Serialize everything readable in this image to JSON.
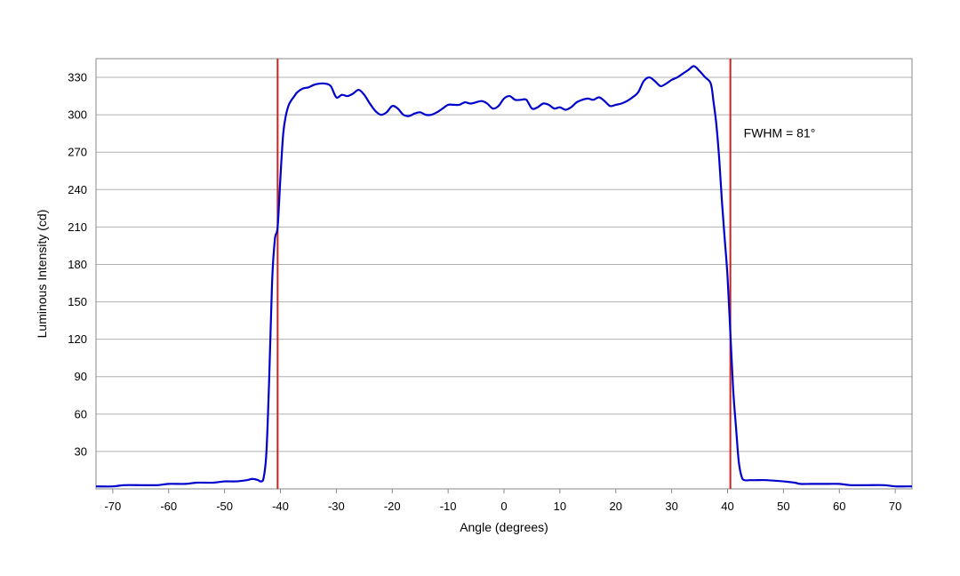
{
  "chart_data": {
    "type": "line",
    "xlabel": "Angle (degrees)",
    "ylabel": "Luminous Intensity (cd)",
    "xlim": [
      -73,
      73
    ],
    "ylim": [
      0,
      345
    ],
    "xticks": [
      -70,
      -60,
      -50,
      -40,
      -30,
      -20,
      -10,
      0,
      10,
      20,
      30,
      40,
      50,
      60,
      70
    ],
    "yticks": [
      30,
      60,
      90,
      120,
      150,
      180,
      210,
      240,
      270,
      300,
      330
    ],
    "grid": "horizontal",
    "annotation": "FWHM = 81°",
    "vlines": [
      -40.5,
      40.5
    ],
    "colors": {
      "series": "#0000cc",
      "vlines": "#cc2222",
      "grid": "#b0b0b0",
      "frame": "#888888"
    },
    "series": [
      {
        "x": [
          -73,
          -70,
          -68,
          -65,
          -62,
          -60,
          -57,
          -55,
          -52,
          -50,
          -48,
          -46,
          -45,
          -44,
          -43.5,
          -43,
          -42.5,
          -42,
          -41.5,
          -41,
          -40.5,
          -40,
          -39.5,
          -39,
          -38.5,
          -38,
          -37.5,
          -37,
          -36,
          -35,
          -34,
          -33,
          -32,
          -31,
          -30,
          -29,
          -28,
          -27,
          -26,
          -25,
          -24,
          -23,
          -22,
          -21,
          -20,
          -19,
          -18,
          -17,
          -16,
          -15,
          -14,
          -13,
          -12,
          -11,
          -10,
          -9,
          -8,
          -7,
          -6,
          -5,
          -4,
          -3,
          -2,
          -1,
          0,
          1,
          2,
          3,
          4,
          5,
          6,
          7,
          8,
          9,
          10,
          11,
          12,
          13,
          14,
          15,
          16,
          17,
          18,
          19,
          20,
          21,
          22,
          23,
          24,
          25,
          26,
          27,
          28,
          29,
          30,
          31,
          32,
          33,
          34,
          35,
          36,
          37,
          37.5,
          38,
          38.5,
          39,
          39.5,
          40,
          40.5,
          41,
          41.5,
          42,
          42.5,
          43,
          44,
          45,
          47,
          50,
          52,
          53,
          55,
          58,
          60,
          62,
          65,
          68,
          70,
          72,
          73
        ],
        "y": [
          2,
          2,
          3,
          3,
          3,
          4,
          4,
          5,
          5,
          6,
          6,
          7,
          8,
          7,
          6,
          9,
          30,
          90,
          165,
          200,
          210,
          250,
          285,
          300,
          308,
          312,
          315,
          318,
          321,
          322,
          324,
          325,
          325,
          323,
          314,
          316,
          315,
          317,
          320,
          316,
          309,
          303,
          300,
          302,
          307,
          305,
          300,
          299,
          301,
          302,
          300,
          300,
          302,
          305,
          308,
          308,
          308,
          310,
          309,
          310,
          311,
          309,
          305,
          307,
          313,
          315,
          312,
          312,
          312,
          305,
          306,
          309,
          308,
          305,
          306,
          304,
          306,
          310,
          312,
          313,
          312,
          314,
          311,
          307,
          308,
          309,
          311,
          314,
          318,
          327,
          330,
          327,
          323,
          325,
          328,
          330,
          333,
          336,
          339,
          335,
          330,
          325,
          310,
          292,
          265,
          230,
          200,
          170,
          125,
          80,
          50,
          22,
          10,
          7,
          7,
          7,
          7,
          6,
          5,
          4,
          4,
          4,
          4,
          3,
          3,
          3,
          2,
          2,
          2
        ]
      }
    ]
  }
}
